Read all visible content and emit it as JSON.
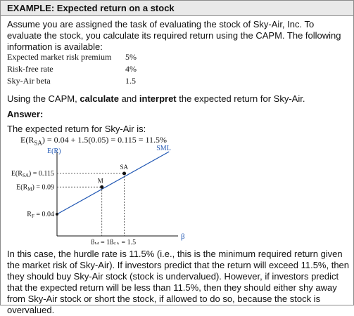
{
  "header": {
    "title": "EXAMPLE: Expected return on a stock"
  },
  "intro": {
    "text": "Assume you are assigned the task of evaluating the stock of Sky-Air, Inc. To evaluate the stock, you calculate its required return using the CAPM. The following information is available:"
  },
  "info_table": [
    {
      "label": "Expected market risk premium",
      "value": "5%"
    },
    {
      "label": "Risk-free rate",
      "value": "4%"
    },
    {
      "label": "Sky-Air beta",
      "value": "1.5"
    }
  ],
  "instruction": {
    "lead": "Using the CAPM, ",
    "calculate": "calculate",
    "and": " and ",
    "interpret": "interpret",
    "tail": " the expected return for Sky-Air."
  },
  "answer_label": "Answer:",
  "expected_text": "The expected return for Sky-Air is:",
  "formula": {
    "left": "E(R",
    "subscript": "SA",
    "right": ") = 0.04 + 1.5(0.05) = 0.115 = 11.5%"
  },
  "chart_data": {
    "type": "line",
    "title": "",
    "ylabel": "E(R)",
    "xlabel": "β",
    "xlim": [
      0,
      2.7
    ],
    "ylim": [
      0,
      0.155
    ],
    "series": [
      {
        "name": "SML",
        "x": [
          0,
          2.5
        ],
        "y": [
          0.04,
          0.165
        ]
      }
    ],
    "points": [
      {
        "name": "M",
        "x": 1.0,
        "y": 0.09
      },
      {
        "name": "SA",
        "x": 1.5,
        "y": 0.115
      }
    ],
    "annotations": {
      "y_labels": [
        {
          "main": "E(R",
          "sub": "SA",
          "tail": ") = 0.115",
          "y": 0.115
        },
        {
          "main": "E(R",
          "sub": "M",
          "tail": ") = 0.09",
          "y": 0.09
        },
        {
          "main": "R",
          "sub": "F",
          "tail": " = 0.04",
          "y": 0.04
        }
      ],
      "x_labels": [
        {
          "main": "β",
          "sub": "M",
          "tail": " = 1",
          "x": 1.0
        },
        {
          "main": "β",
          "sub": "SA",
          "tail": " = 1.5",
          "x": 1.5
        }
      ]
    },
    "grid": false
  },
  "conclusion": {
    "text": "In this case, the hurdle rate is 11.5% (i.e., this is the minimum required return given the market risk of Sky-Air). If investors predict that the return will exceed 11.5%, then they should buy Sky-Air stock (stock is undervalued). However, if investors predict that the expected return will be less than 11.5%, then they should either shy away from Sky-Air stock or short the stock, if allowed to do so, because the stock is overvalued."
  },
  "colors": {
    "sml_line": "#1f56b3",
    "header_bg": "#e9e9e9",
    "border": "#8a8a8a",
    "dots": "#111111"
  }
}
